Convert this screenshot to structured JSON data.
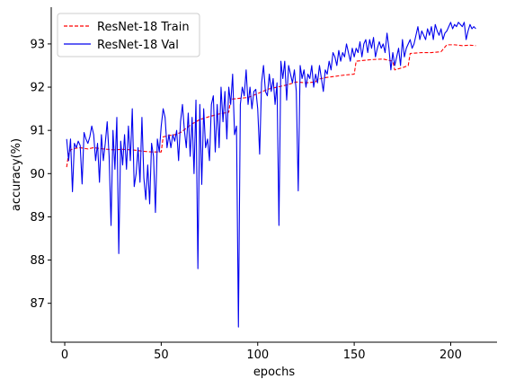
{
  "chart_data": {
    "type": "line",
    "title": "",
    "xlabel": "epochs",
    "ylabel": "accuracy(%)",
    "xlim": [
      -7,
      224
    ],
    "ylim": [
      86.1,
      93.85
    ],
    "xticks": [
      0,
      50,
      100,
      150,
      200
    ],
    "yticks": [
      87,
      88,
      89,
      90,
      91,
      92,
      93
    ],
    "grid": false,
    "legend_position": "top-left",
    "series": [
      {
        "name": "ResNet-18 Train",
        "color": "#ff0000",
        "style": "dashed",
        "points": [
          [
            1,
            90.15
          ],
          [
            2,
            90.45
          ],
          [
            3,
            90.55
          ],
          [
            5,
            90.58
          ],
          [
            8,
            90.6
          ],
          [
            12,
            90.57
          ],
          [
            15,
            90.6
          ],
          [
            20,
            90.57
          ],
          [
            25,
            90.55
          ],
          [
            30,
            90.56
          ],
          [
            35,
            90.55
          ],
          [
            40,
            90.52
          ],
          [
            45,
            90.5
          ],
          [
            50,
            90.5
          ],
          [
            51,
            90.85
          ],
          [
            54,
            90.88
          ],
          [
            57,
            90.9
          ],
          [
            60,
            90.95
          ],
          [
            63,
            91.05
          ],
          [
            66,
            91.15
          ],
          [
            70,
            91.25
          ],
          [
            75,
            91.32
          ],
          [
            80,
            91.38
          ],
          [
            85,
            91.42
          ],
          [
            86,
            91.72
          ],
          [
            90,
            91.74
          ],
          [
            95,
            91.76
          ],
          [
            100,
            91.85
          ],
          [
            105,
            91.95
          ],
          [
            110,
            92.0
          ],
          [
            115,
            92.05
          ],
          [
            120,
            92.12
          ],
          [
            125,
            92.1
          ],
          [
            130,
            92.12
          ],
          [
            131,
            92.18
          ],
          [
            135,
            92.22
          ],
          [
            140,
            92.25
          ],
          [
            145,
            92.28
          ],
          [
            150,
            92.3
          ],
          [
            151,
            92.6
          ],
          [
            155,
            92.62
          ],
          [
            160,
            92.64
          ],
          [
            165,
            92.65
          ],
          [
            170,
            92.6
          ],
          [
            171,
            92.4
          ],
          [
            175,
            92.45
          ],
          [
            178,
            92.5
          ],
          [
            179,
            92.78
          ],
          [
            185,
            92.8
          ],
          [
            190,
            92.8
          ],
          [
            195,
            92.82
          ],
          [
            198,
            92.98
          ],
          [
            202,
            92.98
          ],
          [
            206,
            92.96
          ],
          [
            210,
            92.97
          ],
          [
            213,
            92.96
          ]
        ]
      },
      {
        "name": "ResNet-18 Val",
        "color": "#0000ee",
        "style": "solid",
        "points": [
          [
            1,
            90.8
          ],
          [
            2,
            90.3
          ],
          [
            3,
            90.8
          ],
          [
            4,
            89.58
          ],
          [
            5,
            90.7
          ],
          [
            6,
            90.6
          ],
          [
            7,
            90.75
          ],
          [
            8,
            90.65
          ],
          [
            9,
            89.76
          ],
          [
            10,
            90.95
          ],
          [
            11,
            90.8
          ],
          [
            12,
            90.7
          ],
          [
            13,
            90.85
          ],
          [
            14,
            91.1
          ],
          [
            15,
            90.9
          ],
          [
            16,
            90.3
          ],
          [
            17,
            90.7
          ],
          [
            18,
            89.8
          ],
          [
            19,
            90.9
          ],
          [
            20,
            90.3
          ],
          [
            21,
            90.7
          ],
          [
            22,
            91.2
          ],
          [
            23,
            90.4
          ],
          [
            24,
            88.8
          ],
          [
            25,
            91.0
          ],
          [
            26,
            90.1
          ],
          [
            27,
            91.3
          ],
          [
            28,
            88.15
          ],
          [
            29,
            90.75
          ],
          [
            30,
            90.2
          ],
          [
            31,
            90.9
          ],
          [
            32,
            90.1
          ],
          [
            33,
            91.1
          ],
          [
            34,
            90.3
          ],
          [
            35,
            91.5
          ],
          [
            36,
            89.7
          ],
          [
            37,
            90.0
          ],
          [
            38,
            90.6
          ],
          [
            39,
            89.8
          ],
          [
            40,
            91.3
          ],
          [
            41,
            89.9
          ],
          [
            42,
            89.4
          ],
          [
            43,
            90.2
          ],
          [
            44,
            89.3
          ],
          [
            45,
            90.7
          ],
          [
            46,
            90.4
          ],
          [
            47,
            89.1
          ],
          [
            48,
            90.8
          ],
          [
            49,
            90.5
          ],
          [
            50,
            91.1
          ],
          [
            51,
            91.5
          ],
          [
            52,
            91.3
          ],
          [
            53,
            90.6
          ],
          [
            54,
            90.9
          ],
          [
            55,
            90.6
          ],
          [
            56,
            90.9
          ],
          [
            57,
            90.75
          ],
          [
            58,
            91.0
          ],
          [
            59,
            90.3
          ],
          [
            60,
            91.2
          ],
          [
            61,
            91.6
          ],
          [
            62,
            91.0
          ],
          [
            63,
            90.6
          ],
          [
            64,
            91.4
          ],
          [
            65,
            90.4
          ],
          [
            66,
            91.3
          ],
          [
            67,
            90.0
          ],
          [
            68,
            91.7
          ],
          [
            69,
            87.8
          ],
          [
            70,
            91.6
          ],
          [
            71,
            89.75
          ],
          [
            72,
            91.5
          ],
          [
            73,
            90.6
          ],
          [
            74,
            90.8
          ],
          [
            75,
            90.3
          ],
          [
            76,
            91.6
          ],
          [
            77,
            91.8
          ],
          [
            78,
            90.5
          ],
          [
            79,
            91.6
          ],
          [
            80,
            90.6
          ],
          [
            81,
            92.0
          ],
          [
            82,
            91.2
          ],
          [
            83,
            91.9
          ],
          [
            84,
            90.8
          ],
          [
            85,
            92.0
          ],
          [
            86,
            91.6
          ],
          [
            87,
            92.3
          ],
          [
            88,
            90.9
          ],
          [
            89,
            91.1
          ],
          [
            90,
            86.45
          ],
          [
            91,
            91.6
          ],
          [
            92,
            92.0
          ],
          [
            93,
            91.8
          ],
          [
            94,
            92.4
          ],
          [
            95,
            91.6
          ],
          [
            96,
            92.0
          ],
          [
            97,
            91.5
          ],
          [
            98,
            91.9
          ],
          [
            99,
            91.95
          ],
          [
            100,
            91.5
          ],
          [
            101,
            90.45
          ],
          [
            102,
            92.1
          ],
          [
            103,
            92.5
          ],
          [
            104,
            91.9
          ],
          [
            105,
            91.8
          ],
          [
            106,
            92.3
          ],
          [
            107,
            91.9
          ],
          [
            108,
            92.2
          ],
          [
            109,
            91.6
          ],
          [
            110,
            92.1
          ],
          [
            111,
            88.8
          ],
          [
            112,
            92.6
          ],
          [
            113,
            92.2
          ],
          [
            114,
            92.6
          ],
          [
            115,
            91.7
          ],
          [
            116,
            92.5
          ],
          [
            117,
            92.3
          ],
          [
            118,
            92.1
          ],
          [
            119,
            92.4
          ],
          [
            120,
            91.9
          ],
          [
            121,
            89.6
          ],
          [
            122,
            92.5
          ],
          [
            123,
            92.2
          ],
          [
            124,
            92.4
          ],
          [
            125,
            92.0
          ],
          [
            126,
            92.3
          ],
          [
            127,
            92.2
          ],
          [
            128,
            92.5
          ],
          [
            129,
            92.0
          ],
          [
            130,
            92.3
          ],
          [
            131,
            92.1
          ],
          [
            132,
            92.5
          ],
          [
            133,
            92.2
          ],
          [
            134,
            91.9
          ],
          [
            135,
            92.4
          ],
          [
            136,
            92.3
          ],
          [
            137,
            92.6
          ],
          [
            138,
            92.4
          ],
          [
            139,
            92.8
          ],
          [
            140,
            92.7
          ],
          [
            141,
            92.5
          ],
          [
            142,
            92.85
          ],
          [
            143,
            92.6
          ],
          [
            144,
            92.8
          ],
          [
            145,
            92.7
          ],
          [
            146,
            93.0
          ],
          [
            147,
            92.8
          ],
          [
            148,
            92.6
          ],
          [
            149,
            92.9
          ],
          [
            150,
            92.7
          ],
          [
            151,
            92.9
          ],
          [
            152,
            92.8
          ],
          [
            153,
            93.05
          ],
          [
            154,
            92.7
          ],
          [
            155,
            93.0
          ],
          [
            156,
            93.1
          ],
          [
            157,
            92.8
          ],
          [
            158,
            93.1
          ],
          [
            159,
            92.9
          ],
          [
            160,
            93.15
          ],
          [
            161,
            92.7
          ],
          [
            162,
            92.9
          ],
          [
            163,
            93.05
          ],
          [
            164,
            92.9
          ],
          [
            165,
            93.0
          ],
          [
            166,
            92.8
          ],
          [
            167,
            93.25
          ],
          [
            168,
            92.9
          ],
          [
            169,
            92.4
          ],
          [
            170,
            92.8
          ],
          [
            171,
            92.5
          ],
          [
            172,
            92.7
          ],
          [
            173,
            92.9
          ],
          [
            174,
            92.5
          ],
          [
            175,
            93.1
          ],
          [
            176,
            92.7
          ],
          [
            177,
            92.9
          ],
          [
            178,
            93.0
          ],
          [
            179,
            93.1
          ],
          [
            180,
            92.9
          ],
          [
            181,
            93.0
          ],
          [
            182,
            93.2
          ],
          [
            183,
            93.4
          ],
          [
            184,
            93.1
          ],
          [
            185,
            93.3
          ],
          [
            186,
            93.2
          ],
          [
            187,
            93.1
          ],
          [
            188,
            93.35
          ],
          [
            189,
            93.2
          ],
          [
            190,
            93.4
          ],
          [
            191,
            93.1
          ],
          [
            192,
            93.45
          ],
          [
            193,
            93.3
          ],
          [
            194,
            93.2
          ],
          [
            195,
            93.35
          ],
          [
            196,
            93.1
          ],
          [
            197,
            93.25
          ],
          [
            198,
            93.3
          ],
          [
            199,
            93.4
          ],
          [
            200,
            93.5
          ],
          [
            201,
            93.35
          ],
          [
            202,
            93.45
          ],
          [
            203,
            93.4
          ],
          [
            204,
            93.5
          ],
          [
            205,
            93.45
          ],
          [
            206,
            93.4
          ],
          [
            207,
            93.5
          ],
          [
            208,
            93.1
          ],
          [
            209,
            93.3
          ],
          [
            210,
            93.45
          ],
          [
            211,
            93.35
          ],
          [
            212,
            93.4
          ],
          [
            213,
            93.35
          ]
        ]
      }
    ]
  }
}
